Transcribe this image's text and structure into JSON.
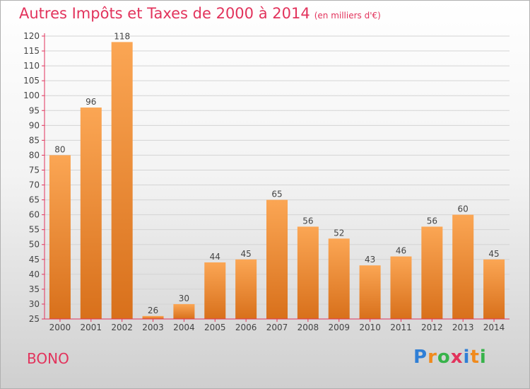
{
  "title": "Autres Impôts et Taxes de 2000 à 2014",
  "subtitle": "(en milliers d'€)",
  "commune": "BONO",
  "logo": {
    "letters": [
      {
        "ch": "P",
        "color": "#2f7fd6"
      },
      {
        "ch": "r",
        "color": "#f08a1c"
      },
      {
        "ch": "o",
        "color": "#37b34a"
      },
      {
        "ch": "x",
        "color": "#e2335c"
      },
      {
        "ch": "i",
        "color": "#2f7fd6"
      },
      {
        "ch": "t",
        "color": "#f08a1c"
      },
      {
        "ch": "i",
        "color": "#37b34a"
      }
    ]
  },
  "colors": {
    "bar_top": "#fba654",
    "bar_bottom": "#d8701b",
    "axis": "#e2335c",
    "grid": "#d4d4d4",
    "text": "#444444"
  },
  "chart_data": {
    "type": "bar",
    "categories": [
      "2000",
      "2001",
      "2002",
      "2003",
      "2004",
      "2005",
      "2006",
      "2007",
      "2008",
      "2009",
      "2010",
      "2011",
      "2012",
      "2013",
      "2014"
    ],
    "values": [
      80,
      96,
      118,
      26,
      30,
      44,
      45,
      65,
      56,
      52,
      43,
      46,
      56,
      60,
      45
    ],
    "ylim": [
      25,
      120
    ],
    "yticks": [
      25,
      30,
      35,
      40,
      45,
      50,
      55,
      60,
      65,
      70,
      75,
      80,
      85,
      90,
      95,
      100,
      105,
      110,
      115,
      120
    ],
    "grid": true
  }
}
